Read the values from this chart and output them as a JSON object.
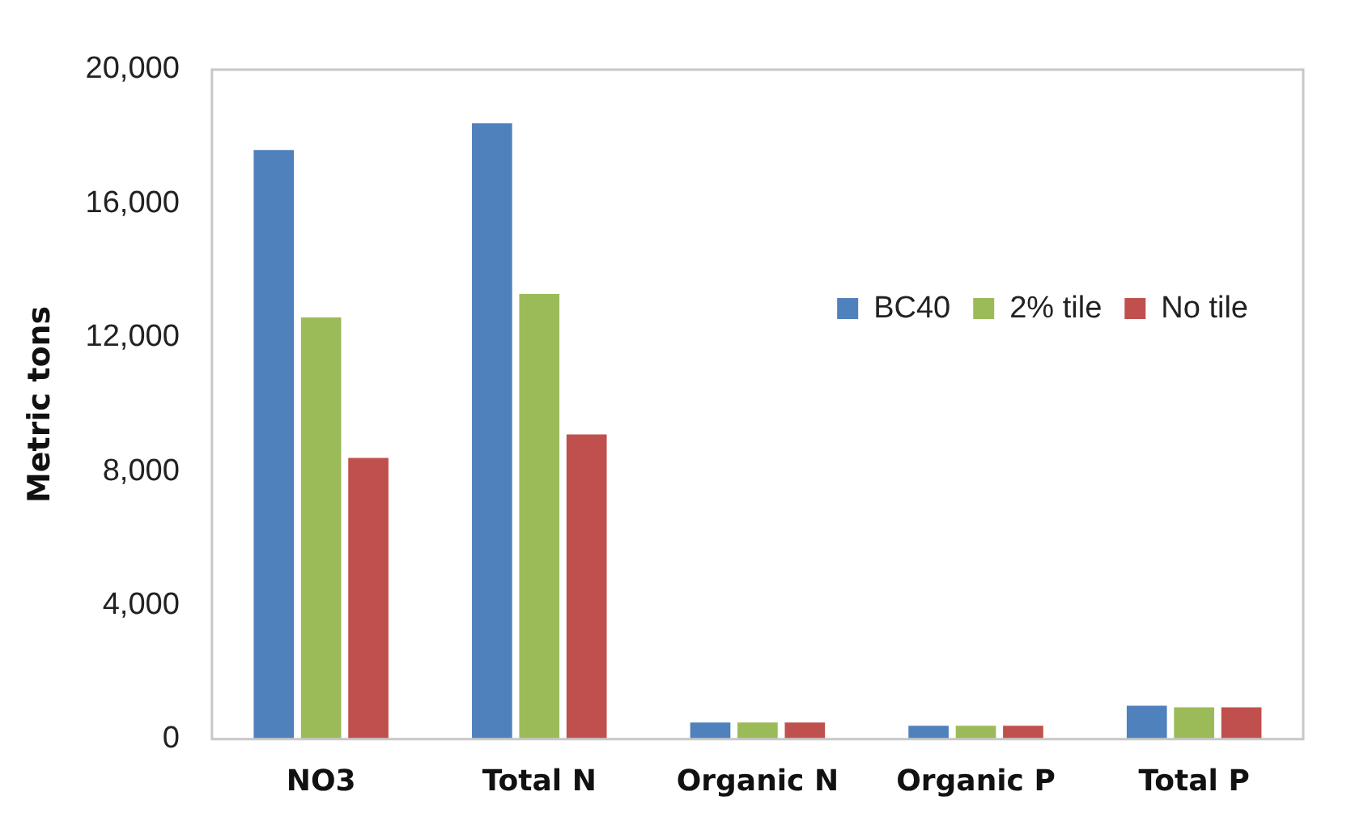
{
  "chart_data": {
    "type": "bar",
    "ylabel": "Metric tons",
    "categories": [
      "NO3",
      "Total N",
      "Organic N",
      "Organic P",
      "Total P"
    ],
    "series": [
      {
        "name": "BC40",
        "color": "#4f81bd",
        "values": [
          17600,
          18400,
          500,
          400,
          1000
        ]
      },
      {
        "name": "2% tile",
        "color": "#9bbb59",
        "values": [
          12600,
          13300,
          500,
          400,
          950
        ]
      },
      {
        "name": "No tile",
        "color": "#c0504d",
        "values": [
          8400,
          9100,
          500,
          400,
          950
        ]
      }
    ],
    "ylim": [
      0,
      20000
    ],
    "yticks": [
      {
        "value": 0,
        "label": "0"
      },
      {
        "value": 4000,
        "label": "4,000"
      },
      {
        "value": 8000,
        "label": "8,000"
      },
      {
        "value": 12000,
        "label": "12,000"
      },
      {
        "value": 16000,
        "label": "16,000"
      },
      {
        "value": 20000,
        "label": "20,000"
      }
    ],
    "grid": false,
    "legend": "top right"
  }
}
